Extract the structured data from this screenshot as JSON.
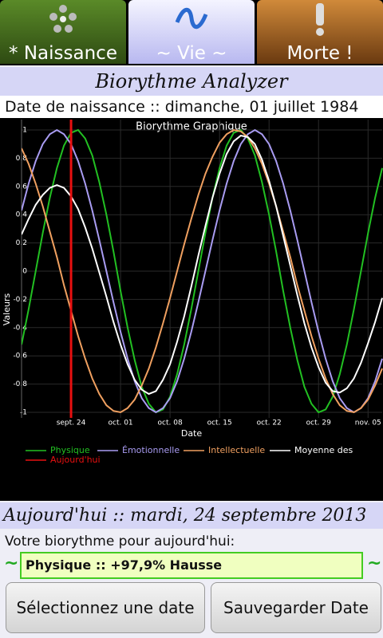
{
  "tabs": [
    {
      "label": "* Naissance"
    },
    {
      "label": "~ Vie ~"
    },
    {
      "label": "Morte !"
    }
  ],
  "header": {
    "title": "Biorythme Analyzer"
  },
  "birth_line": "Date de naissance :: dimanche, 01 juillet 1984",
  "chart_data": {
    "type": "line",
    "title": "Biorythme Graphique",
    "xlabel": "Date",
    "ylabel": "Valeurs",
    "categories": [
      null,
      null,
      null,
      null,
      null,
      null,
      null,
      "sept. 24",
      null,
      null,
      null,
      null,
      null,
      null,
      "oct. 01",
      null,
      null,
      null,
      null,
      null,
      null,
      "oct. 08",
      null,
      null,
      null,
      null,
      null,
      null,
      "oct. 15",
      null,
      null,
      null,
      null,
      null,
      null,
      "oct. 22",
      null,
      null,
      null,
      null,
      null,
      null,
      "oct. 29",
      null,
      null,
      null,
      null,
      null,
      null,
      "nov. 05",
      null,
      null
    ],
    "ylim": [
      -1,
      1
    ],
    "yticks": [
      -1,
      -0.8,
      -0.6,
      -0.4,
      -0.2,
      0,
      0.2,
      0.4,
      0.6,
      0.8,
      1
    ],
    "grid": true,
    "series": [
      {
        "name": "Physique",
        "color": "#22c022",
        "values": [
          -0.52,
          -0.27,
          0,
          0.27,
          0.52,
          0.73,
          0.89,
          0.98,
          1.0,
          0.94,
          0.82,
          0.63,
          0.4,
          0.14,
          -0.14,
          -0.4,
          -0.63,
          -0.82,
          -0.94,
          -1.0,
          -0.98,
          -0.89,
          -0.73,
          -0.52,
          -0.27,
          0,
          0.27,
          0.52,
          0.73,
          0.89,
          0.98,
          1.0,
          0.94,
          0.82,
          0.63,
          0.4,
          0.14,
          -0.14,
          -0.4,
          -0.63,
          -0.82,
          -0.94,
          -1.0,
          -0.98,
          -0.89,
          -0.73,
          -0.52,
          -0.27,
          0,
          0.27,
          0.52,
          0.73
        ]
      },
      {
        "name": "Émotionnelle",
        "color": "#a99cf2",
        "values": [
          0.43,
          0.62,
          0.78,
          0.9,
          0.97,
          1.0,
          0.97,
          0.9,
          0.78,
          0.62,
          0.43,
          0.22,
          0,
          -0.22,
          -0.43,
          -0.62,
          -0.78,
          -0.9,
          -0.97,
          -1.0,
          -0.97,
          -0.9,
          -0.78,
          -0.62,
          -0.43,
          -0.22,
          0,
          0.22,
          0.43,
          0.62,
          0.78,
          0.9,
          0.97,
          1.0,
          0.97,
          0.9,
          0.78,
          0.62,
          0.43,
          0.22,
          0,
          -0.22,
          -0.43,
          -0.62,
          -0.78,
          -0.9,
          -0.97,
          -1.0,
          -0.97,
          -0.9,
          -0.78,
          -0.62
        ]
      },
      {
        "name": "Intellectuelle",
        "color": "#f0a060",
        "values": [
          0.87,
          0.76,
          0.62,
          0.46,
          0.28,
          0.1,
          -0.1,
          -0.28,
          -0.46,
          -0.62,
          -0.76,
          -0.87,
          -0.95,
          -0.99,
          -1.0,
          -0.97,
          -0.91,
          -0.81,
          -0.69,
          -0.54,
          -0.37,
          -0.19,
          0,
          0.19,
          0.37,
          0.54,
          0.69,
          0.81,
          0.91,
          0.97,
          1.0,
          0.99,
          0.95,
          0.87,
          0.76,
          0.62,
          0.46,
          0.28,
          0.1,
          -0.1,
          -0.28,
          -0.46,
          -0.62,
          -0.76,
          -0.87,
          -0.95,
          -0.99,
          -1.0,
          -0.97,
          -0.91,
          -0.81,
          -0.69
        ]
      },
      {
        "name": "Moyenne des",
        "color": "#ffffff",
        "values": [
          0.26,
          0.37,
          0.47,
          0.54,
          0.59,
          0.61,
          0.59,
          0.53,
          0.44,
          0.31,
          0.16,
          -0.01,
          -0.18,
          -0.36,
          -0.52,
          -0.66,
          -0.77,
          -0.84,
          -0.87,
          -0.85,
          -0.77,
          -0.66,
          -0.5,
          -0.32,
          -0.11,
          0.11,
          0.32,
          0.52,
          0.69,
          0.83,
          0.92,
          0.96,
          0.95,
          0.9,
          0.79,
          0.64,
          0.46,
          0.25,
          0.04,
          -0.17,
          -0.37,
          -0.54,
          -0.68,
          -0.79,
          -0.85,
          -0.86,
          -0.83,
          -0.76,
          -0.65,
          -0.51,
          -0.36,
          -0.19
        ]
      }
    ],
    "today_line": {
      "name": "Aujourd'hui",
      "color": "#e81010",
      "x": "sept. 24"
    }
  },
  "today_line_text": "Aujourd'hui :: mardi, 24 septembre 2013",
  "prompt": "Votre biorythme pour aujourd'hui:",
  "status": {
    "left": "~",
    "text": "Physique :: +97,9% Hausse",
    "right": "~"
  },
  "buttons": [
    {
      "label": "Sélectionnez une date"
    },
    {
      "label": "Sauvegarder Date"
    }
  ]
}
